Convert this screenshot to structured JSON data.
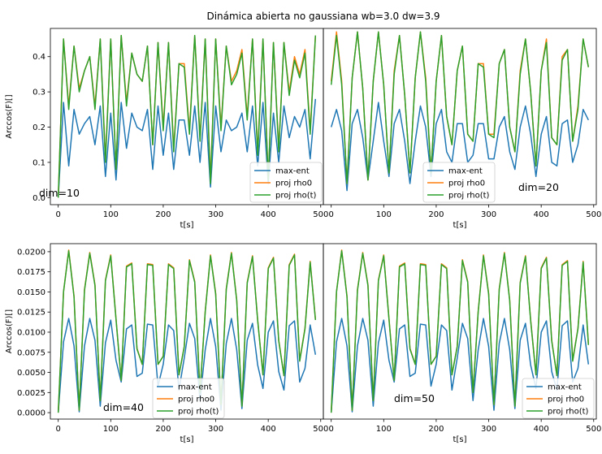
{
  "figure": {
    "suptitle": "Dinámica abierta no gaussiana wb=3.0 dw=3.9"
  },
  "legend_labels": [
    "max-ent",
    "proj rho0",
    "proj rho(t)"
  ],
  "colors": {
    "max-ent": "#1f77b4",
    "proj rho0": "#ff7f0e",
    "proj rho(t)": "#2ca02c"
  },
  "chart_data": [
    {
      "type": "line",
      "annotation": "dim=10",
      "xlabel": "t[s]",
      "ylabel": "Arccos(F)[]",
      "xlim": [
        -15,
        505
      ],
      "ylim": [
        -0.02,
        0.48
      ],
      "xticks": [
        0,
        100,
        200,
        300,
        400,
        500
      ],
      "yticks": [
        0.0,
        0.1,
        0.2,
        0.3,
        0.4
      ],
      "ytick_labels": [
        "0.0",
        "0.1",
        "0.2",
        "0.3",
        "0.4"
      ],
      "legend_loc": "lower-right",
      "x": [
        0,
        10,
        20,
        30,
        40,
        50,
        60,
        70,
        80,
        90,
        100,
        110,
        120,
        130,
        140,
        150,
        160,
        170,
        180,
        190,
        200,
        210,
        220,
        230,
        240,
        250,
        260,
        270,
        280,
        290,
        300,
        310,
        320,
        330,
        340,
        350,
        360,
        370,
        380,
        390,
        400,
        410,
        420,
        430,
        440,
        450,
        460,
        470,
        480,
        490
      ],
      "series": [
        {
          "name": "max-ent",
          "values": [
            0.0,
            0.27,
            0.09,
            0.25,
            0.18,
            0.21,
            0.23,
            0.15,
            0.26,
            0.06,
            0.24,
            0.05,
            0.27,
            0.14,
            0.24,
            0.2,
            0.19,
            0.25,
            0.08,
            0.26,
            0.12,
            0.24,
            0.08,
            0.22,
            0.22,
            0.12,
            0.26,
            0.1,
            0.27,
            0.03,
            0.26,
            0.13,
            0.22,
            0.19,
            0.2,
            0.24,
            0.13,
            0.26,
            0.09,
            0.27,
            0.04,
            0.24,
            0.1,
            0.26,
            0.17,
            0.23,
            0.2,
            0.25,
            0.11,
            0.28
          ]
        },
        {
          "name": "proj rho0",
          "values": [
            0.0,
            0.45,
            0.26,
            0.43,
            0.31,
            0.36,
            0.4,
            0.26,
            0.45,
            0.11,
            0.45,
            0.08,
            0.46,
            0.27,
            0.41,
            0.35,
            0.33,
            0.43,
            0.15,
            0.44,
            0.2,
            0.44,
            0.14,
            0.38,
            0.38,
            0.19,
            0.46,
            0.17,
            0.45,
            0.05,
            0.45,
            0.2,
            0.43,
            0.33,
            0.36,
            0.42,
            0.23,
            0.45,
            0.13,
            0.45,
            0.05,
            0.44,
            0.14,
            0.44,
            0.3,
            0.4,
            0.35,
            0.42,
            0.19,
            0.46
          ]
        },
        {
          "name": "proj rho(t)",
          "values": [
            0.0,
            0.45,
            0.25,
            0.43,
            0.3,
            0.36,
            0.4,
            0.25,
            0.45,
            0.1,
            0.45,
            0.08,
            0.46,
            0.26,
            0.41,
            0.35,
            0.33,
            0.43,
            0.15,
            0.44,
            0.19,
            0.44,
            0.13,
            0.38,
            0.37,
            0.18,
            0.46,
            0.16,
            0.45,
            0.04,
            0.45,
            0.19,
            0.43,
            0.32,
            0.35,
            0.41,
            0.22,
            0.45,
            0.12,
            0.45,
            0.05,
            0.44,
            0.13,
            0.44,
            0.29,
            0.39,
            0.34,
            0.41,
            0.18,
            0.46
          ]
        }
      ]
    },
    {
      "type": "line",
      "annotation": "dim=20",
      "xlabel": "t[s]",
      "ylabel": "",
      "xlim": [
        -15,
        505
      ],
      "ylim": [
        -0.02,
        0.48
      ],
      "xticks": [
        0,
        100,
        200,
        300,
        400,
        500
      ],
      "yticks": [],
      "ytick_labels": [],
      "legend_loc": "lower-center",
      "x": [
        0,
        10,
        20,
        30,
        40,
        50,
        60,
        70,
        80,
        90,
        100,
        110,
        120,
        130,
        140,
        150,
        160,
        170,
        180,
        190,
        200,
        210,
        220,
        230,
        240,
        250,
        260,
        270,
        280,
        290,
        300,
        310,
        320,
        330,
        340,
        350,
        360,
        370,
        380,
        390,
        400,
        410,
        420,
        430,
        440,
        450,
        460,
        470,
        480,
        490
      ],
      "series": [
        {
          "name": "max-ent",
          "values": [
            0.2,
            0.25,
            0.19,
            0.02,
            0.21,
            0.25,
            0.17,
            0.05,
            0.16,
            0.27,
            0.16,
            0.06,
            0.21,
            0.25,
            0.16,
            0.04,
            0.16,
            0.26,
            0.2,
            0.06,
            0.21,
            0.25,
            0.13,
            0.1,
            0.21,
            0.21,
            0.1,
            0.12,
            0.21,
            0.21,
            0.11,
            0.11,
            0.2,
            0.23,
            0.13,
            0.08,
            0.2,
            0.26,
            0.18,
            0.06,
            0.18,
            0.23,
            0.1,
            0.09,
            0.21,
            0.22,
            0.1,
            0.15,
            0.25,
            0.22
          ]
        },
        {
          "name": "proj rho0",
          "values": [
            0.33,
            0.47,
            0.33,
            0.04,
            0.34,
            0.47,
            0.31,
            0.05,
            0.33,
            0.47,
            0.32,
            0.07,
            0.36,
            0.46,
            0.29,
            0.07,
            0.34,
            0.47,
            0.34,
            0.07,
            0.33,
            0.46,
            0.23,
            0.15,
            0.36,
            0.43,
            0.18,
            0.16,
            0.38,
            0.38,
            0.18,
            0.18,
            0.38,
            0.42,
            0.2,
            0.13,
            0.36,
            0.45,
            0.3,
            0.09,
            0.36,
            0.45,
            0.17,
            0.15,
            0.4,
            0.42,
            0.16,
            0.26,
            0.45,
            0.37
          ]
        },
        {
          "name": "proj rho(t)",
          "values": [
            0.32,
            0.46,
            0.32,
            0.04,
            0.34,
            0.47,
            0.31,
            0.05,
            0.33,
            0.47,
            0.32,
            0.07,
            0.35,
            0.46,
            0.29,
            0.07,
            0.34,
            0.47,
            0.33,
            0.07,
            0.33,
            0.46,
            0.23,
            0.15,
            0.36,
            0.43,
            0.18,
            0.16,
            0.38,
            0.37,
            0.18,
            0.17,
            0.38,
            0.42,
            0.2,
            0.13,
            0.35,
            0.45,
            0.3,
            0.09,
            0.36,
            0.44,
            0.17,
            0.15,
            0.39,
            0.42,
            0.16,
            0.25,
            0.45,
            0.37
          ]
        }
      ]
    },
    {
      "type": "line",
      "annotation": "dim=40",
      "xlabel": "t[s]",
      "ylabel": "Arccos(F)[]",
      "xlim": [
        -15,
        505
      ],
      "ylim": [
        -0.0008,
        0.021
      ],
      "xticks": [
        0,
        100,
        200,
        300,
        400,
        500
      ],
      "yticks": [
        0.0,
        0.0025,
        0.005,
        0.0075,
        0.01,
        0.0125,
        0.015,
        0.0175,
        0.02
      ],
      "ytick_labels": [
        "0.0000",
        "0.0025",
        "0.0050",
        "0.0075",
        "0.0100",
        "0.0125",
        "0.0150",
        "0.0175",
        "0.0200"
      ],
      "legend_loc": "lower-right",
      "x": [
        0,
        10,
        20,
        30,
        40,
        50,
        60,
        70,
        80,
        90,
        100,
        110,
        120,
        130,
        140,
        150,
        160,
        170,
        180,
        190,
        200,
        210,
        220,
        230,
        240,
        250,
        260,
        270,
        280,
        290,
        300,
        310,
        320,
        330,
        340,
        350,
        360,
        370,
        380,
        390,
        400,
        410,
        420,
        430,
        440,
        450,
        460,
        470,
        480,
        490
      ],
      "series": [
        {
          "name": "max-ent",
          "values": [
            0.0,
            0.0088,
            0.0117,
            0.0083,
            0.0001,
            0.0083,
            0.0117,
            0.009,
            0.0008,
            0.0087,
            0.0115,
            0.0065,
            0.0038,
            0.0104,
            0.0109,
            0.0045,
            0.0049,
            0.011,
            0.0109,
            0.0033,
            0.006,
            0.0109,
            0.0102,
            0.0028,
            0.0068,
            0.0111,
            0.0092,
            0.0015,
            0.0078,
            0.0117,
            0.0082,
            0.0003,
            0.0086,
            0.0117,
            0.0078,
            0.0005,
            0.009,
            0.0111,
            0.0059,
            0.003,
            0.01,
            0.0114,
            0.0051,
            0.0028,
            0.0108,
            0.0114,
            0.0038,
            0.0055,
            0.0109,
            0.0072
          ]
        },
        {
          "name": "proj rho0",
          "values": [
            0.0,
            0.015,
            0.0202,
            0.0145,
            0.0003,
            0.0153,
            0.0199,
            0.0159,
            0.0015,
            0.0165,
            0.0196,
            0.0117,
            0.004,
            0.0182,
            0.0186,
            0.008,
            0.006,
            0.0185,
            0.0184,
            0.006,
            0.007,
            0.0185,
            0.018,
            0.0047,
            0.0082,
            0.019,
            0.0163,
            0.0025,
            0.0126,
            0.0196,
            0.0148,
            0.001,
            0.0154,
            0.0199,
            0.014,
            0.0008,
            0.0162,
            0.0195,
            0.0115,
            0.0047,
            0.018,
            0.0193,
            0.009,
            0.0046,
            0.0184,
            0.0197,
            0.0065,
            0.0105,
            0.0188,
            0.0116
          ]
        },
        {
          "name": "proj rho(t)",
          "values": [
            0.0,
            0.015,
            0.0201,
            0.0144,
            0.0003,
            0.0152,
            0.0198,
            0.0158,
            0.0015,
            0.0164,
            0.0195,
            0.0116,
            0.004,
            0.0181,
            0.0185,
            0.0079,
            0.006,
            0.0184,
            0.0183,
            0.006,
            0.007,
            0.0184,
            0.0179,
            0.0047,
            0.0082,
            0.0189,
            0.0162,
            0.0025,
            0.0125,
            0.0195,
            0.0147,
            0.001,
            0.0153,
            0.0198,
            0.0139,
            0.0008,
            0.0161,
            0.0194,
            0.0114,
            0.0047,
            0.0179,
            0.0192,
            0.0089,
            0.0046,
            0.0183,
            0.0196,
            0.0064,
            0.0104,
            0.0187,
            0.0115
          ]
        }
      ]
    },
    {
      "type": "line",
      "annotation": "dim=50",
      "xlabel": "t[s]",
      "ylabel": "",
      "xlim": [
        -15,
        505
      ],
      "ylim": [
        -0.0008,
        0.021
      ],
      "xticks": [
        0,
        100,
        200,
        300,
        400,
        500
      ],
      "yticks": [],
      "ytick_labels": [],
      "legend_loc": "lower-right",
      "x": [
        0,
        10,
        20,
        30,
        40,
        50,
        60,
        70,
        80,
        90,
        100,
        110,
        120,
        130,
        140,
        150,
        160,
        170,
        180,
        190,
        200,
        210,
        220,
        230,
        240,
        250,
        260,
        270,
        280,
        290,
        300,
        310,
        320,
        330,
        340,
        350,
        360,
        370,
        380,
        390,
        400,
        410,
        420,
        430,
        440,
        450,
        460,
        470,
        480,
        490
      ],
      "series": [
        {
          "name": "max-ent",
          "values": [
            0.0,
            0.0088,
            0.0117,
            0.0083,
            0.0001,
            0.0083,
            0.0117,
            0.009,
            0.0008,
            0.0087,
            0.0115,
            0.0065,
            0.0038,
            0.0104,
            0.0109,
            0.0045,
            0.0049,
            0.011,
            0.0109,
            0.0033,
            0.006,
            0.0109,
            0.0102,
            0.0028,
            0.0068,
            0.0111,
            0.0092,
            0.0015,
            0.0078,
            0.0117,
            0.0082,
            0.0003,
            0.0086,
            0.0117,
            0.0078,
            0.0005,
            0.009,
            0.0111,
            0.0059,
            0.003,
            0.01,
            0.0114,
            0.0051,
            0.0028,
            0.0108,
            0.0114,
            0.0038,
            0.0055,
            0.0109,
            0.006
          ]
        },
        {
          "name": "proj rho0",
          "values": [
            0.0,
            0.015,
            0.0202,
            0.0145,
            0.0003,
            0.0153,
            0.0199,
            0.0159,
            0.0015,
            0.0165,
            0.0196,
            0.0117,
            0.004,
            0.0182,
            0.0186,
            0.008,
            0.006,
            0.0185,
            0.0184,
            0.006,
            0.007,
            0.0185,
            0.018,
            0.0047,
            0.0082,
            0.019,
            0.0163,
            0.0025,
            0.0126,
            0.0196,
            0.0148,
            0.001,
            0.0154,
            0.0199,
            0.014,
            0.0008,
            0.0162,
            0.0195,
            0.0115,
            0.0047,
            0.018,
            0.0193,
            0.009,
            0.0046,
            0.0184,
            0.0189,
            0.0065,
            0.0105,
            0.0188,
            0.0085
          ]
        },
        {
          "name": "proj rho(t)",
          "values": [
            0.0,
            0.015,
            0.0201,
            0.0144,
            0.0003,
            0.0152,
            0.0198,
            0.0158,
            0.0015,
            0.0164,
            0.0195,
            0.0116,
            0.004,
            0.0181,
            0.0185,
            0.0079,
            0.006,
            0.0184,
            0.0183,
            0.006,
            0.007,
            0.0184,
            0.0179,
            0.0047,
            0.0082,
            0.0189,
            0.0162,
            0.0025,
            0.0125,
            0.0195,
            0.0147,
            0.001,
            0.0153,
            0.0198,
            0.0139,
            0.0008,
            0.0161,
            0.0194,
            0.0114,
            0.0047,
            0.0179,
            0.0192,
            0.0089,
            0.0046,
            0.0183,
            0.0188,
            0.0064,
            0.0104,
            0.0187,
            0.0084
          ]
        }
      ]
    }
  ]
}
